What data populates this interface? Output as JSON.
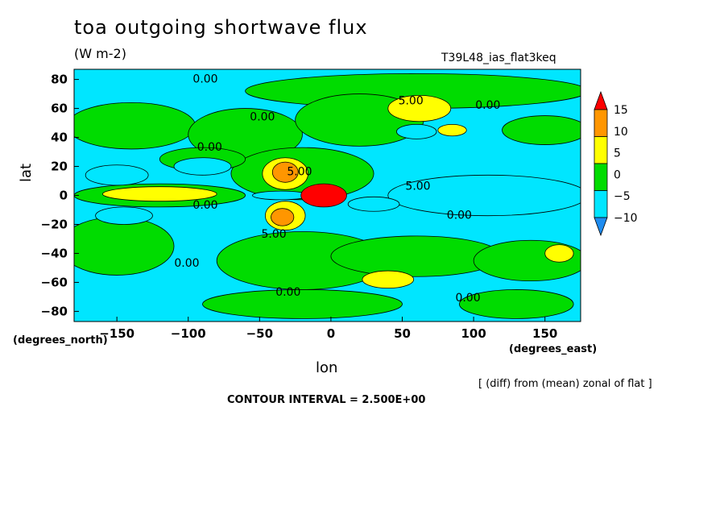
{
  "chart_data": {
    "type": "heatmap",
    "title": "toa outgoing shortwave flux",
    "units_label": "(W m-2)",
    "run_label": "T39L48_ias_flat3keq",
    "xlabel": "lon",
    "ylabel": "lat",
    "x_unit_label": "(degrees_east)",
    "y_unit_label": "(degrees_north)",
    "note": "[ (diff) from (mean) zonal of flat ]",
    "contour_interval": "CONTOUR INTERVAL = 2.500E+00",
    "xlim": [
      -180,
      175
    ],
    "ylim": [
      -87,
      87
    ],
    "x_ticks": [
      -150,
      -100,
      -50,
      0,
      50,
      100,
      150
    ],
    "y_ticks": [
      80,
      60,
      40,
      20,
      0,
      -20,
      -40,
      -60,
      -80
    ],
    "colorbar": {
      "levels": [
        -10,
        -5,
        0,
        5,
        10,
        15
      ],
      "labels": [
        "15",
        "10",
        "5",
        "0",
        "-5",
        "-10"
      ],
      "colors": [
        "#1e8cf0",
        "#00e6ff",
        "#00dc00",
        "#ffff00",
        "#ff9600",
        "#ff0000"
      ]
    },
    "background_color": "#00e6ff",
    "contour_labels": [
      {
        "text": "0.00",
        "lon": -88,
        "lat": 80
      },
      {
        "text": "5.00",
        "lon": 56,
        "lat": 65
      },
      {
        "text": "0.00",
        "lon": 110,
        "lat": 62
      },
      {
        "text": "0.00",
        "lon": -48,
        "lat": 54
      },
      {
        "text": "0.00",
        "lon": -85,
        "lat": 33
      },
      {
        "text": "5.00",
        "lon": -22,
        "lat": 16
      },
      {
        "text": "5.00",
        "lon": 61,
        "lat": 6
      },
      {
        "text": "0.00",
        "lon": -88,
        "lat": -7
      },
      {
        "text": "0.00",
        "lon": 90,
        "lat": -14
      },
      {
        "text": "5.00",
        "lon": -40,
        "lat": -27
      },
      {
        "text": "0.00",
        "lon": -101,
        "lat": -47
      },
      {
        "text": "0.00",
        "lon": -30,
        "lat": -67
      },
      {
        "text": "0.00",
        "lon": 96,
        "lat": -71
      }
    ],
    "regions": [
      {
        "level": 0,
        "lon": 60,
        "lat": 72,
        "rlon": 120,
        "rlat": 12
      },
      {
        "level": 0,
        "lon": -140,
        "lat": 48,
        "rlon": 45,
        "rlat": 16
      },
      {
        "level": 0,
        "lon": -60,
        "lat": 42,
        "rlon": 40,
        "rlat": 18
      },
      {
        "level": 0,
        "lon": 20,
        "lat": 52,
        "rlon": 45,
        "rlat": 18
      },
      {
        "level": 0,
        "lon": 150,
        "lat": 45,
        "rlon": 30,
        "rlat": 10
      },
      {
        "level": 0,
        "lon": -20,
        "lat": 15,
        "rlon": 50,
        "rlat": 18
      },
      {
        "level": 0,
        "lon": -120,
        "lat": 0,
        "rlon": 60,
        "rlat": 8
      },
      {
        "level": 0,
        "lon": -150,
        "lat": -35,
        "rlon": 40,
        "rlat": 20
      },
      {
        "level": 0,
        "lon": -20,
        "lat": -45,
        "rlon": 60,
        "rlat": 20
      },
      {
        "level": 0,
        "lon": 60,
        "lat": -42,
        "rlon": 60,
        "rlat": 14
      },
      {
        "level": 0,
        "lon": 140,
        "lat": -45,
        "rlon": 40,
        "rlat": 14
      },
      {
        "level": 0,
        "lon": -20,
        "lat": -75,
        "rlon": 70,
        "rlat": 10
      },
      {
        "level": 0,
        "lon": 130,
        "lat": -75,
        "rlon": 40,
        "rlat": 10
      },
      {
        "level": 0,
        "lon": -90,
        "lat": 25,
        "rlon": 30,
        "rlat": 8
      },
      {
        "level": -5,
        "lon": 110,
        "lat": 0,
        "rlon": 70,
        "rlat": 14
      },
      {
        "level": -5,
        "lon": -150,
        "lat": 14,
        "rlon": 22,
        "rlat": 7
      },
      {
        "level": -5,
        "lon": -145,
        "lat": -14,
        "rlon": 20,
        "rlat": 6
      },
      {
        "level": -5,
        "lon": -90,
        "lat": 20,
        "rlon": 20,
        "rlat": 6
      },
      {
        "level": -5,
        "lon": 60,
        "lat": 44,
        "rlon": 14,
        "rlat": 5
      },
      {
        "level": -5,
        "lon": 30,
        "lat": -6,
        "rlon": 18,
        "rlat": 5
      },
      {
        "level": -5,
        "lon": -35,
        "lat": 0,
        "rlon": 20,
        "rlat": 3
      },
      {
        "level": 5,
        "lon": -120,
        "lat": 1,
        "rlon": 40,
        "rlat": 5
      },
      {
        "level": 5,
        "lon": 62,
        "lat": 60,
        "rlon": 22,
        "rlat": 9
      },
      {
        "level": 5,
        "lon": 85,
        "lat": 45,
        "rlon": 10,
        "rlat": 4
      },
      {
        "level": 5,
        "lon": -32,
        "lat": 15,
        "rlon": 16,
        "rlat": 11
      },
      {
        "level": 5,
        "lon": -32,
        "lat": -14,
        "rlon": 14,
        "rlat": 10
      },
      {
        "level": 5,
        "lon": 160,
        "lat": -40,
        "rlon": 10,
        "rlat": 6
      },
      {
        "level": 5,
        "lon": 40,
        "lat": -58,
        "rlon": 18,
        "rlat": 6
      },
      {
        "level": 10,
        "lon": -32,
        "lat": 16,
        "rlon": 9,
        "rlat": 7
      },
      {
        "level": 10,
        "lon": -34,
        "lat": -15,
        "rlon": 8,
        "rlat": 6
      },
      {
        "level": 15,
        "lon": -5,
        "lat": 0,
        "rlon": 16,
        "rlat": 8
      }
    ]
  }
}
